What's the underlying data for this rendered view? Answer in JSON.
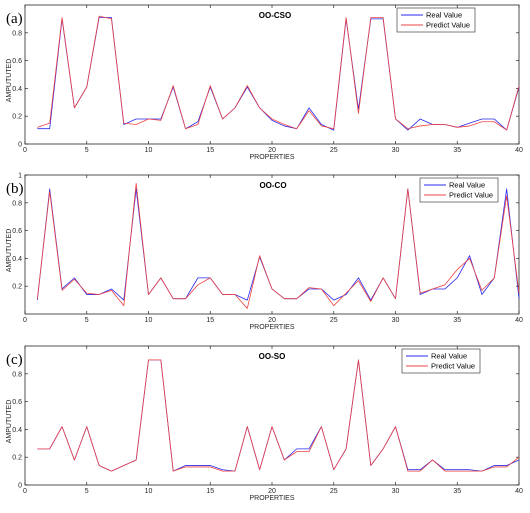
{
  "colors": {
    "real": "#2a2aee",
    "predict": "#ee4444",
    "axis": "#262626"
  },
  "chart_data": [
    {
      "type": "line",
      "panel_label": "(a)",
      "title": "OO-CSO",
      "xlabel": "PROPERTIES",
      "ylabel": "AMPUTUTED",
      "xlim": [
        0,
        40
      ],
      "ylim": [
        0,
        1
      ],
      "xticks": [
        0,
        5,
        10,
        15,
        20,
        25,
        30,
        35,
        40
      ],
      "yticks": [
        0,
        0.2,
        0.4,
        0.6,
        0.8
      ],
      "ytick_labels": [
        "0",
        "0.2",
        "0.4",
        "0.6",
        "0.8"
      ],
      "legend": "top-right",
      "x": [
        1,
        2,
        3,
        4,
        5,
        6,
        7,
        8,
        9,
        10,
        11,
        12,
        13,
        14,
        15,
        16,
        17,
        18,
        19,
        20,
        21,
        22,
        23,
        24,
        25,
        26,
        27,
        28,
        29,
        30,
        31,
        32,
        33,
        34,
        35,
        36,
        37,
        38,
        39,
        40
      ],
      "series": [
        {
          "name": "Real Value",
          "color": "#2a2aee",
          "values": [
            0.11,
            0.11,
            0.9,
            0.26,
            0.41,
            0.91,
            0.91,
            0.14,
            0.18,
            0.18,
            0.18,
            0.41,
            0.11,
            0.16,
            0.41,
            0.18,
            0.26,
            0.41,
            0.26,
            0.17,
            0.13,
            0.11,
            0.26,
            0.14,
            0.1,
            0.9,
            0.25,
            0.9,
            0.9,
            0.18,
            0.1,
            0.18,
            0.14,
            0.14,
            0.12,
            0.15,
            0.18,
            0.18,
            0.1,
            0.41
          ]
        },
        {
          "name": "Predict Value",
          "color": "#ee4444",
          "values": [
            0.12,
            0.15,
            0.91,
            0.26,
            0.41,
            0.92,
            0.9,
            0.15,
            0.14,
            0.18,
            0.17,
            0.42,
            0.11,
            0.14,
            0.42,
            0.18,
            0.26,
            0.42,
            0.26,
            0.18,
            0.14,
            0.11,
            0.24,
            0.13,
            0.11,
            0.91,
            0.22,
            0.91,
            0.91,
            0.18,
            0.11,
            0.13,
            0.14,
            0.14,
            0.12,
            0.13,
            0.16,
            0.16,
            0.1,
            0.42
          ]
        }
      ]
    },
    {
      "type": "line",
      "panel_label": "(b)",
      "title": "OO-CO",
      "xlabel": "PROPERTIES",
      "ylabel": "AMPUTUTED",
      "xlim": [
        0,
        40
      ],
      "ylim": [
        0,
        1
      ],
      "xticks": [
        0,
        5,
        10,
        15,
        20,
        25,
        30,
        35,
        40
      ],
      "yticks": [
        0.2,
        0.4,
        0.6,
        0.8,
        1
      ],
      "ytick_labels": [
        "0.2",
        "0.4",
        "0.6",
        "0.8",
        "1"
      ],
      "legend": "top-right",
      "x": [
        1,
        2,
        3,
        4,
        5,
        6,
        7,
        8,
        9,
        10,
        11,
        12,
        13,
        14,
        15,
        16,
        17,
        18,
        19,
        20,
        21,
        22,
        23,
        24,
        25,
        26,
        27,
        28,
        29,
        30,
        31,
        32,
        33,
        34,
        35,
        36,
        37,
        38,
        39,
        40
      ],
      "series": [
        {
          "name": "Real Value",
          "color": "#2a2aee",
          "values": [
            0.1,
            0.9,
            0.18,
            0.26,
            0.14,
            0.14,
            0.18,
            0.1,
            0.9,
            0.14,
            0.26,
            0.11,
            0.11,
            0.26,
            0.26,
            0.14,
            0.14,
            0.1,
            0.41,
            0.18,
            0.11,
            0.11,
            0.18,
            0.18,
            0.1,
            0.14,
            0.26,
            0.1,
            0.26,
            0.11,
            0.9,
            0.14,
            0.18,
            0.18,
            0.26,
            0.42,
            0.14,
            0.26,
            0.9,
            0.11
          ]
        },
        {
          "name": "Predict Value",
          "color": "#ee4444",
          "values": [
            0.11,
            0.88,
            0.17,
            0.25,
            0.15,
            0.14,
            0.17,
            0.06,
            0.94,
            0.14,
            0.26,
            0.11,
            0.11,
            0.21,
            0.26,
            0.14,
            0.14,
            0.04,
            0.42,
            0.18,
            0.11,
            0.11,
            0.19,
            0.18,
            0.06,
            0.15,
            0.24,
            0.09,
            0.26,
            0.11,
            0.9,
            0.15,
            0.18,
            0.21,
            0.32,
            0.4,
            0.17,
            0.26,
            0.85,
            0.15
          ]
        }
      ]
    },
    {
      "type": "line",
      "panel_label": "(c)",
      "title": "OO-SO",
      "xlabel": "PROPERTIES",
      "ylabel": "AMPUTUTED",
      "xlim": [
        0,
        40
      ],
      "ylim": [
        0,
        1
      ],
      "xticks": [
        0,
        5,
        10,
        15,
        20,
        25,
        30,
        35,
        40
      ],
      "yticks": [
        0,
        0.2,
        0.4,
        0.6,
        0.8
      ],
      "ytick_labels": [
        "0",
        "0.2",
        "0.4",
        "0.6",
        "0.8"
      ],
      "legend": "top-right",
      "x": [
        1,
        2,
        3,
        4,
        5,
        6,
        7,
        8,
        9,
        10,
        11,
        12,
        13,
        14,
        15,
        16,
        17,
        18,
        19,
        20,
        21,
        22,
        23,
        24,
        25,
        26,
        27,
        28,
        29,
        30,
        31,
        32,
        33,
        34,
        35,
        36,
        37,
        38,
        39,
        40
      ],
      "series": [
        {
          "name": "Real Value",
          "color": "#2a2aee",
          "values": [
            0.26,
            0.26,
            0.42,
            0.18,
            0.42,
            0.14,
            0.1,
            0.14,
            0.18,
            0.9,
            0.9,
            0.1,
            0.14,
            0.14,
            0.14,
            0.11,
            0.1,
            0.42,
            0.11,
            0.42,
            0.18,
            0.26,
            0.26,
            0.42,
            0.11,
            0.26,
            0.9,
            0.14,
            0.26,
            0.42,
            0.11,
            0.11,
            0.18,
            0.11,
            0.11,
            0.11,
            0.1,
            0.14,
            0.14,
            0.18
          ]
        },
        {
          "name": "Predict Value",
          "color": "#ee4444",
          "values": [
            0.26,
            0.26,
            0.42,
            0.18,
            0.42,
            0.14,
            0.1,
            0.14,
            0.18,
            0.9,
            0.9,
            0.1,
            0.13,
            0.13,
            0.13,
            0.1,
            0.1,
            0.42,
            0.11,
            0.42,
            0.18,
            0.24,
            0.24,
            0.42,
            0.11,
            0.26,
            0.9,
            0.14,
            0.26,
            0.42,
            0.1,
            0.1,
            0.18,
            0.1,
            0.1,
            0.1,
            0.1,
            0.13,
            0.13,
            0.2
          ]
        }
      ]
    }
  ]
}
